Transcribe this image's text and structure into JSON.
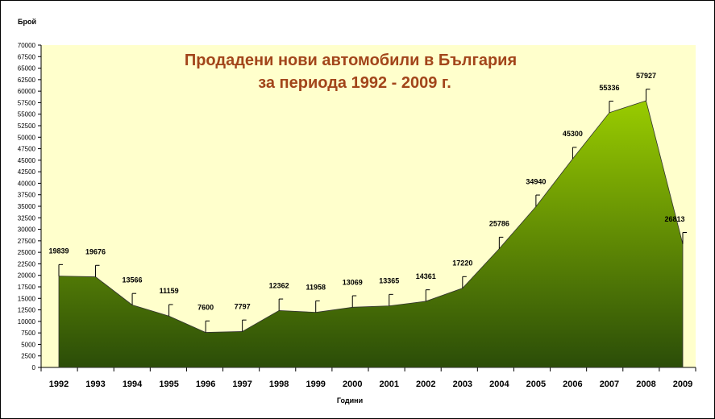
{
  "chart_data": {
    "type": "area",
    "title_line1": "Продадени нови автомобили в България",
    "title_line2": "за периода 1992 - 2009 г.",
    "xlabel": "Години",
    "ylabel": "Брой",
    "ylim": [
      0,
      70000
    ],
    "ytick_step": 2500,
    "grid": false,
    "legend": "none",
    "error_bars": true,
    "categories": [
      "1992",
      "1993",
      "1994",
      "1995",
      "1996",
      "1997",
      "1998",
      "1999",
      "2000",
      "2001",
      "2002",
      "2003",
      "2004",
      "2005",
      "2006",
      "2007",
      "2008",
      "2009"
    ],
    "values": [
      19839,
      19676,
      13566,
      11159,
      7600,
      7797,
      12362,
      11958,
      13069,
      13365,
      14361,
      17220,
      25786,
      34940,
      45300,
      55336,
      57927,
      26813
    ],
    "plot_bg": "#ffffcc",
    "fill_top": "#99cc00",
    "fill_bottom": "#2b4d08",
    "title_color": "#a2451a"
  }
}
